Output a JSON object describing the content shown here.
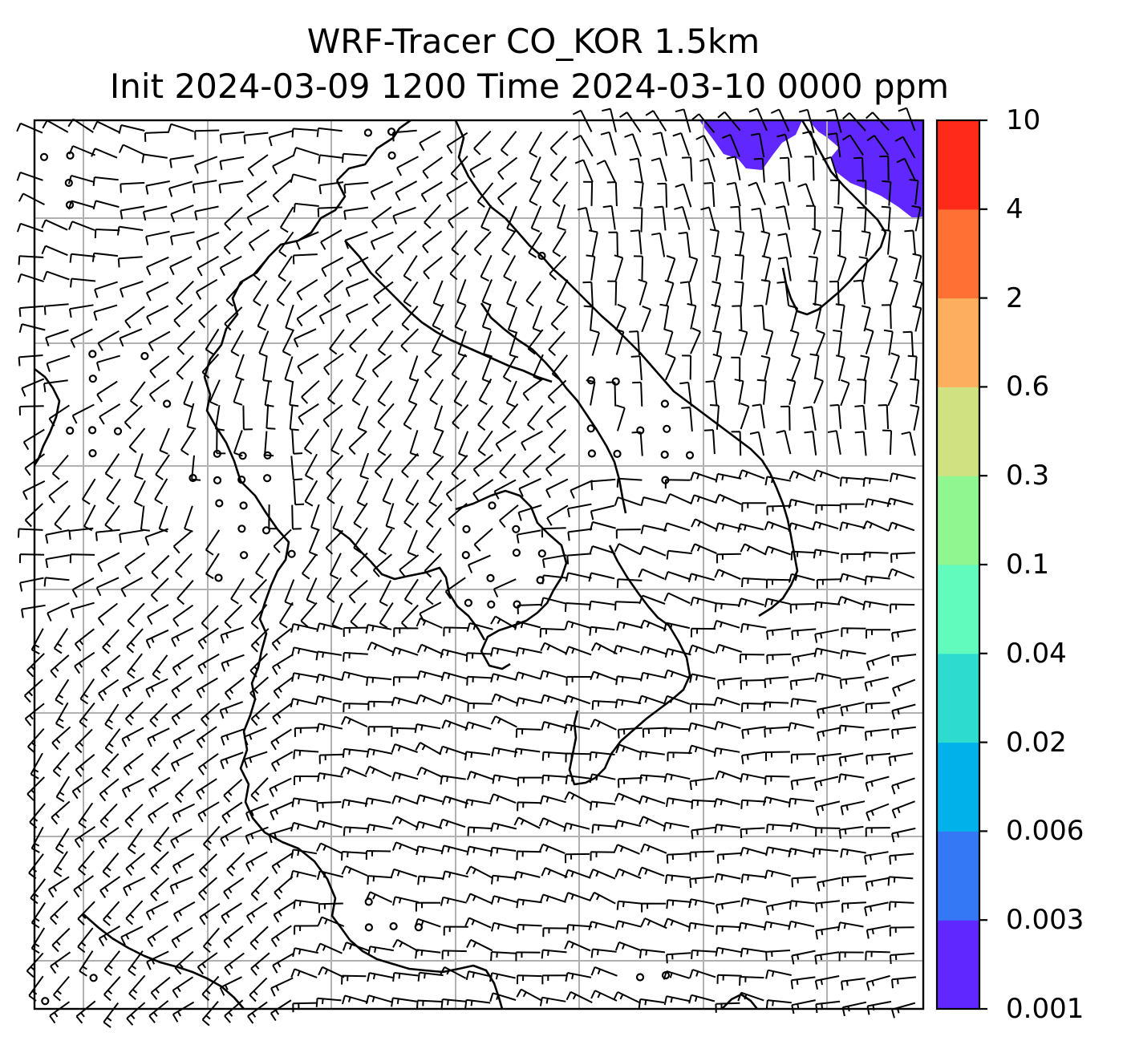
{
  "title": {
    "line1": "WRF-Tracer CO_KOR 1.5km",
    "line2": "Init 2024-03-09 1200 Time 2024-03-10 0000 ppm"
  },
  "colorbar": {
    "levels": [
      "0.001",
      "0.003",
      "0.006",
      "0.02",
      "0.04",
      "0.1",
      "0.3",
      "0.6",
      "2",
      "4",
      "10"
    ],
    "colors": [
      "#6127ff",
      "#3478f6",
      "#00b1ea",
      "#2edccf",
      "#61fbbe",
      "#90f68f",
      "#cfe181",
      "#fdaf5f",
      "#ff7035",
      "#ff2a19"
    ]
  },
  "map": {
    "gridline_color": "#b0b0b0",
    "tracer_color": "#6127ff",
    "barb_color": "#000000"
  }
}
